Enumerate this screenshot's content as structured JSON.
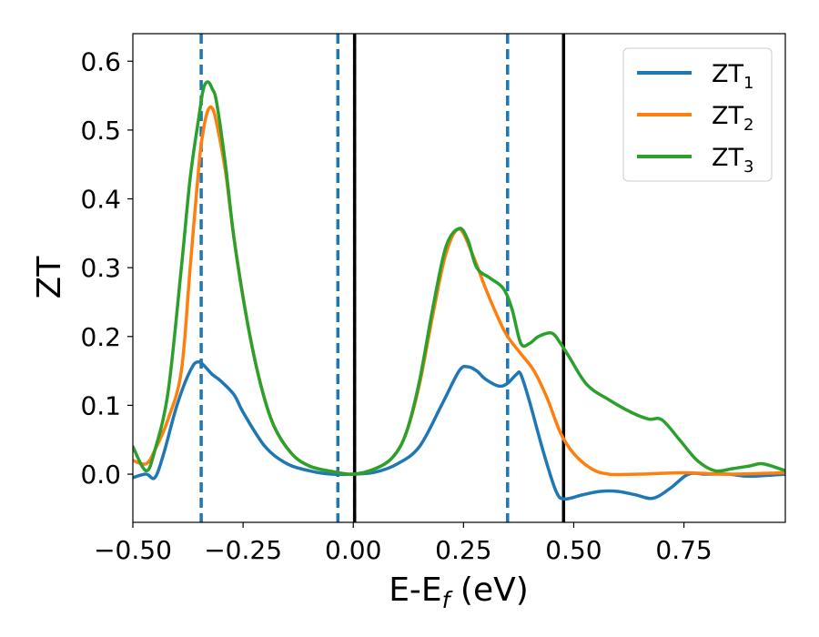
{
  "chart_data": {
    "type": "line",
    "xlabel": "E-E",
    "xlabel_sub": "f",
    "xlabel_unit": " (eV)",
    "ylabel": "ZT",
    "xlim": [
      -0.5,
      0.98
    ],
    "ylim": [
      -0.07,
      0.64
    ],
    "xticks": [
      {
        "value": -0.5,
        "label": "−0.50"
      },
      {
        "value": -0.25,
        "label": "−0.25"
      },
      {
        "value": 0.0,
        "label": "0.00"
      },
      {
        "value": 0.25,
        "label": "0.25"
      },
      {
        "value": 0.5,
        "label": "0.50"
      },
      {
        "value": 0.75,
        "label": "0.75"
      }
    ],
    "yticks": [
      {
        "value": 0.0,
        "label": "0.0"
      },
      {
        "value": 0.1,
        "label": "0.1"
      },
      {
        "value": 0.2,
        "label": "0.2"
      },
      {
        "value": 0.3,
        "label": "0.3"
      },
      {
        "value": 0.4,
        "label": "0.4"
      },
      {
        "value": 0.5,
        "label": "0.5"
      },
      {
        "value": 0.6,
        "label": "0.6"
      }
    ],
    "grid": false,
    "legend": {
      "placement": "top-right",
      "entries": [
        {
          "base": "ZT",
          "sub": "1"
        },
        {
          "base": "ZT",
          "sub": "2"
        },
        {
          "base": "ZT",
          "sub": "3"
        }
      ]
    },
    "reference_lines": [
      {
        "x": -0.345,
        "style": "dashed",
        "color": "#1f77b4"
      },
      {
        "x": -0.035,
        "style": "dashed",
        "color": "#1f77b4"
      },
      {
        "x": 0.003,
        "style": "dashed",
        "color": "#1f77b4"
      },
      {
        "x": 0.35,
        "style": "dashed",
        "color": "#1f77b4"
      },
      {
        "x": 0.003,
        "style": "solid",
        "color": "#000000"
      },
      {
        "x": 0.477,
        "style": "solid",
        "color": "#000000"
      }
    ],
    "series": [
      {
        "legend_index": 0,
        "color": "#1f77b4",
        "x": [
          -0.5,
          -0.47,
          -0.45,
          -0.43,
          -0.4,
          -0.37,
          -0.35,
          -0.32,
          -0.3,
          -0.27,
          -0.25,
          -0.2,
          -0.15,
          -0.1,
          -0.05,
          0.0,
          0.05,
          0.1,
          0.15,
          0.2,
          0.24,
          0.26,
          0.28,
          0.3,
          0.33,
          0.35,
          0.37,
          0.38,
          0.4,
          0.43,
          0.46,
          0.48,
          0.52,
          0.56,
          0.6,
          0.64,
          0.68,
          0.72,
          0.76,
          0.8,
          0.85,
          0.9,
          0.98
        ],
        "y": [
          -0.005,
          0.0,
          -0.005,
          0.03,
          0.1,
          0.15,
          0.163,
          0.145,
          0.135,
          0.115,
          0.09,
          0.04,
          0.015,
          0.005,
          0.0,
          0.0,
          0.003,
          0.015,
          0.04,
          0.1,
          0.15,
          0.156,
          0.15,
          0.138,
          0.128,
          0.132,
          0.145,
          0.145,
          0.105,
          0.035,
          -0.025,
          -0.036,
          -0.03,
          -0.025,
          -0.025,
          -0.03,
          -0.035,
          -0.02,
          0.0,
          0.0,
          0.0,
          -0.003,
          0.0
        ]
      },
      {
        "legend_index": 1,
        "color": "#ff7f0e",
        "x": [
          -0.5,
          -0.47,
          -0.45,
          -0.42,
          -0.39,
          -0.37,
          -0.35,
          -0.34,
          -0.33,
          -0.32,
          -0.31,
          -0.29,
          -0.27,
          -0.24,
          -0.21,
          -0.18,
          -0.14,
          -0.1,
          -0.05,
          0.0,
          0.05,
          0.09,
          0.12,
          0.15,
          0.18,
          0.21,
          0.24,
          0.27,
          0.3,
          0.33,
          0.35,
          0.38,
          0.41,
          0.44,
          0.47,
          0.5,
          0.54,
          0.58,
          0.65,
          0.75,
          0.85,
          0.98
        ],
        "y": [
          0.02,
          0.015,
          0.035,
          0.08,
          0.15,
          0.3,
          0.45,
          0.5,
          0.528,
          0.532,
          0.51,
          0.44,
          0.34,
          0.22,
          0.13,
          0.07,
          0.03,
          0.012,
          0.004,
          0.0,
          0.008,
          0.025,
          0.06,
          0.13,
          0.23,
          0.32,
          0.356,
          0.32,
          0.27,
          0.225,
          0.2,
          0.175,
          0.15,
          0.11,
          0.06,
          0.03,
          0.008,
          0.0,
          0.0,
          0.002,
          0.0,
          0.002
        ]
      },
      {
        "legend_index": 2,
        "color": "#2ca02c",
        "x": [
          -0.5,
          -0.47,
          -0.45,
          -0.42,
          -0.39,
          -0.37,
          -0.35,
          -0.34,
          -0.33,
          -0.32,
          -0.31,
          -0.29,
          -0.27,
          -0.24,
          -0.21,
          -0.18,
          -0.14,
          -0.1,
          -0.05,
          0.0,
          0.05,
          0.09,
          0.12,
          0.15,
          0.18,
          0.21,
          0.24,
          0.26,
          0.28,
          0.31,
          0.34,
          0.36,
          0.38,
          0.4,
          0.42,
          0.45,
          0.47,
          0.49,
          0.53,
          0.58,
          0.63,
          0.67,
          0.7,
          0.74,
          0.78,
          0.82,
          0.86,
          0.9,
          0.93,
          0.98
        ],
        "y": [
          0.04,
          0.005,
          0.035,
          0.12,
          0.3,
          0.43,
          0.52,
          0.56,
          0.57,
          0.56,
          0.54,
          0.45,
          0.34,
          0.22,
          0.13,
          0.07,
          0.03,
          0.012,
          0.004,
          0.0,
          0.008,
          0.025,
          0.06,
          0.135,
          0.24,
          0.33,
          0.357,
          0.34,
          0.3,
          0.285,
          0.27,
          0.24,
          0.19,
          0.19,
          0.2,
          0.205,
          0.19,
          0.17,
          0.13,
          0.108,
          0.09,
          0.08,
          0.079,
          0.05,
          0.02,
          0.005,
          0.008,
          0.012,
          0.015,
          0.005
        ]
      }
    ]
  }
}
